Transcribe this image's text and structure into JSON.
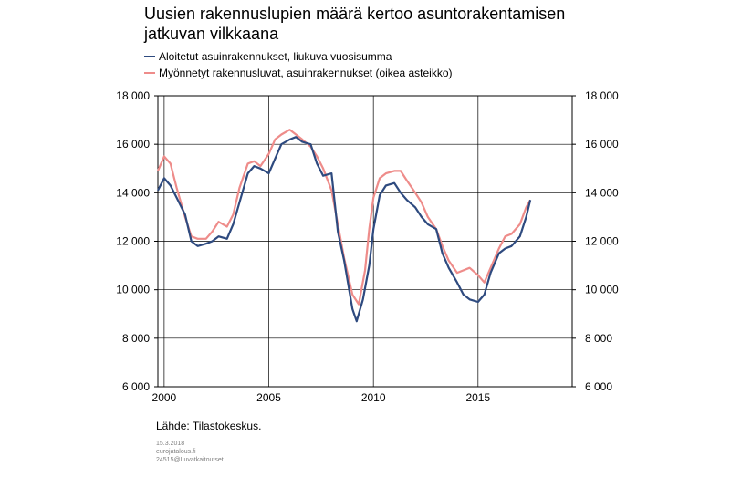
{
  "chart_data": {
    "type": "line",
    "title": "Uusien rakennuslupien määrä kertoo asuntorakentamisen jatkuvan vilkkaana",
    "ylim_left": [
      6000,
      18000
    ],
    "ylim_right": [
      6000,
      18000
    ],
    "yticks": [
      6000,
      8000,
      10000,
      12000,
      14000,
      16000,
      18000
    ],
    "ytick_labels": [
      "6 000",
      "8 000",
      "10 000",
      "12 000",
      "14 000",
      "16 000",
      "18 000"
    ],
    "xlim": [
      1999.7,
      2019.5
    ],
    "xticks": [
      2000,
      2005,
      2010,
      2015
    ],
    "xtick_labels": [
      "2000",
      "2005",
      "2010",
      "2015"
    ],
    "grid": true,
    "legend_position": "top-left",
    "series": [
      {
        "name": "Aloitetut asuinrakennukset, liukuva vuosisumma",
        "color": "#2e4a7f",
        "x": [
          1999.7,
          2000.0,
          2000.3,
          2000.6,
          2001.0,
          2001.3,
          2001.6,
          2002.0,
          2002.3,
          2002.6,
          2003.0,
          2003.3,
          2003.6,
          2004.0,
          2004.3,
          2004.6,
          2005.0,
          2005.3,
          2005.6,
          2006.0,
          2006.3,
          2006.6,
          2007.0,
          2007.3,
          2007.6,
          2008.0,
          2008.3,
          2008.6,
          2009.0,
          2009.2,
          2009.5,
          2009.8,
          2010.0,
          2010.3,
          2010.6,
          2011.0,
          2011.3,
          2011.6,
          2012.0,
          2012.3,
          2012.6,
          2013.0,
          2013.3,
          2013.6,
          2014.0,
          2014.3,
          2014.6,
          2015.0,
          2015.3,
          2015.6,
          2016.0,
          2016.3,
          2016.6,
          2017.0,
          2017.3,
          2017.5
        ],
        "y": [
          14100,
          14600,
          14300,
          13800,
          13100,
          12000,
          11800,
          11900,
          12000,
          12200,
          12100,
          12700,
          13600,
          14800,
          15100,
          15000,
          14800,
          15400,
          16000,
          16200,
          16300,
          16100,
          16000,
          15200,
          14700,
          14800,
          12400,
          11200,
          9200,
          8700,
          9600,
          11000,
          12500,
          13900,
          14300,
          14400,
          14000,
          13700,
          13400,
          13000,
          12700,
          12500,
          11500,
          10900,
          10300,
          9800,
          9600,
          9500,
          9800,
          10700,
          11500,
          11700,
          11800,
          12200,
          13000,
          13700
        ]
      },
      {
        "name": "Myönnetyt rakennusluvat, asuinrakennukset (oikea asteikko)",
        "color": "#ee8c8a",
        "x": [
          1999.7,
          2000.0,
          2000.3,
          2000.6,
          2001.0,
          2001.3,
          2001.6,
          2002.0,
          2002.3,
          2002.6,
          2003.0,
          2003.3,
          2003.6,
          2004.0,
          2004.3,
          2004.6,
          2005.0,
          2005.3,
          2005.6,
          2006.0,
          2006.3,
          2006.6,
          2007.0,
          2007.3,
          2007.6,
          2008.0,
          2008.3,
          2008.6,
          2009.0,
          2009.3,
          2009.6,
          2009.8,
          2010.0,
          2010.3,
          2010.6,
          2011.0,
          2011.3,
          2011.6,
          2012.0,
          2012.3,
          2012.6,
          2013.0,
          2013.3,
          2013.6,
          2014.0,
          2014.3,
          2014.6,
          2015.0,
          2015.3,
          2015.6,
          2016.0,
          2016.3,
          2016.6,
          2017.0,
          2017.3,
          2017.5
        ],
        "y": [
          14900,
          15500,
          15200,
          14200,
          13000,
          12200,
          12100,
          12100,
          12400,
          12800,
          12600,
          13100,
          14200,
          15200,
          15300,
          15100,
          15600,
          16200,
          16400,
          16600,
          16400,
          16200,
          15900,
          15500,
          15000,
          14100,
          12700,
          11300,
          9800,
          9400,
          10800,
          12500,
          13800,
          14600,
          14800,
          14900,
          14900,
          14500,
          14000,
          13600,
          13000,
          12500,
          11800,
          11200,
          10700,
          10800,
          10900,
          10600,
          10300,
          10900,
          11700,
          12200,
          12300,
          12700,
          13400,
          13700
        ]
      }
    ]
  },
  "source_text": "Lähde: Tilastokeskus.",
  "footer": {
    "date": "15.3.2018",
    "site": "eurojatalous.fi",
    "code": "24515@Luvatkaitoutset"
  }
}
